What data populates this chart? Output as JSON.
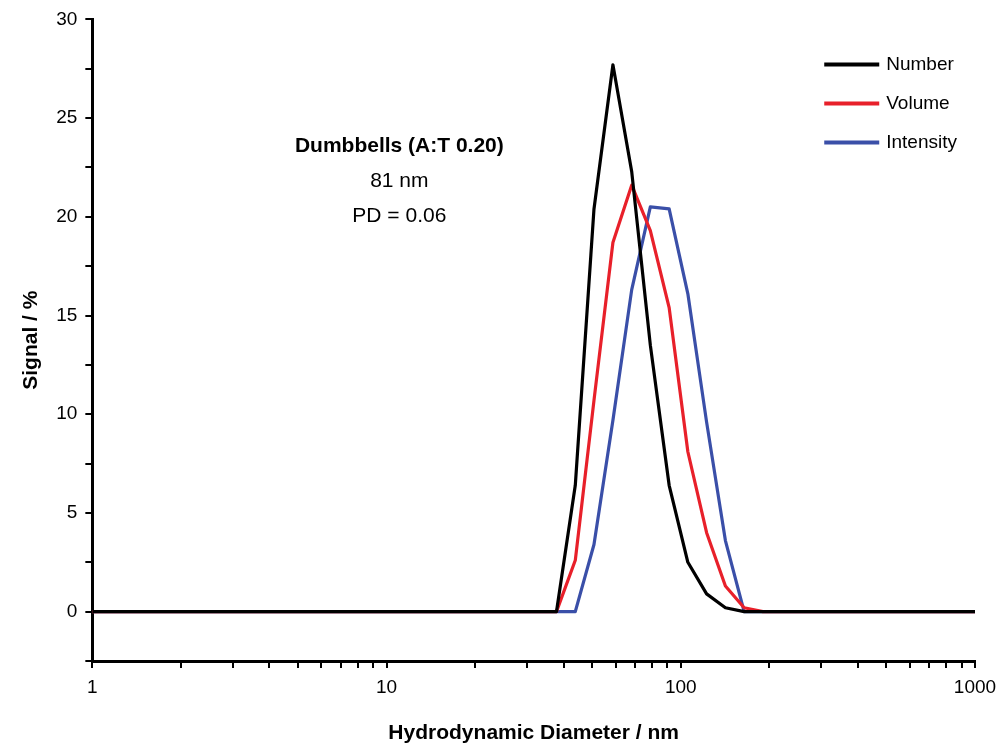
{
  "chart_data": {
    "type": "line",
    "xlabel": "Hydrodynamic Diameter / nm",
    "ylabel": "Signal / %",
    "log": "x",
    "xlim": [
      1,
      1000
    ],
    "ylim": [
      -2.5,
      30
    ],
    "xticks": [
      1,
      {
        "value": 2,
        "label": null
      },
      {
        "value": 3,
        "label": null
      },
      {
        "value": 4,
        "label": null
      },
      {
        "value": 5,
        "label": null
      },
      {
        "value": 6,
        "label": null
      },
      {
        "value": 7,
        "label": null
      },
      {
        "value": 8,
        "label": null
      },
      {
        "value": 9,
        "label": null
      },
      10,
      {
        "value": 20,
        "label": null
      },
      {
        "value": 30,
        "label": null
      },
      {
        "value": 40,
        "label": null
      },
      {
        "value": 50,
        "label": null
      },
      {
        "value": 60,
        "label": null
      },
      {
        "value": 70,
        "label": null
      },
      {
        "value": 80,
        "label": null
      },
      {
        "value": 90,
        "label": null
      },
      100,
      {
        "value": 200,
        "label": null
      },
      {
        "value": 300,
        "label": null
      },
      {
        "value": 400,
        "label": null
      },
      {
        "value": 500,
        "label": null
      },
      {
        "value": 600,
        "label": null
      },
      {
        "value": 700,
        "label": null
      },
      {
        "value": 800,
        "label": null
      },
      {
        "value": 900,
        "label": null
      },
      1000
    ],
    "yticks": [
      {
        "value": -2.5,
        "label": null
      },
      0,
      {
        "value": 2.5,
        "label": null
      },
      5,
      {
        "value": 7.5,
        "label": null
      },
      10,
      {
        "value": 12.5,
        "label": null
      },
      15,
      {
        "value": 17.5,
        "label": null
      },
      20,
      {
        "value": 22.5,
        "label": null
      },
      25,
      {
        "value": 27.5,
        "label": null
      },
      30
    ],
    "grid": false,
    "legend": "top right",
    "marker": "none",
    "line_style": "solid",
    "annotations": [
      "Dumbbells (A:T 0.20)",
      "81 nm",
      "PD = 0.06"
    ],
    "series": [
      {
        "name": "Number",
        "color": "#000000",
        "x": [
          1,
          37.8,
          43.8,
          50.7,
          58.8,
          68.1,
          78.8,
          91.3,
          105.7,
          122.4,
          141.8,
          164.2,
          190.1,
          1000
        ],
        "values": [
          0,
          0,
          6.4,
          20.4,
          27.7,
          22.3,
          13.5,
          6.4,
          2.5,
          0.9,
          0.2,
          0,
          0,
          0
        ]
      },
      {
        "name": "Volume",
        "color": "#e8202a",
        "x": [
          1,
          37.8,
          43.8,
          50.7,
          58.8,
          68.1,
          78.8,
          91.3,
          105.7,
          122.4,
          141.8,
          164.2,
          190.1,
          1000
        ],
        "values": [
          0,
          0,
          2.6,
          10.7,
          18.7,
          21.6,
          19.3,
          15.4,
          8.1,
          4.0,
          1.3,
          0.2,
          0,
          0
        ]
      },
      {
        "name": "Intensity",
        "color": "#3a4fa8",
        "x": [
          1,
          37.8,
          43.8,
          50.7,
          58.8,
          68.1,
          78.8,
          91.3,
          105.7,
          122.4,
          141.8,
          164.2,
          190.1,
          1000
        ],
        "values": [
          0,
          0,
          0,
          3.4,
          9.7,
          16.3,
          20.5,
          20.4,
          16.1,
          9.6,
          3.6,
          0,
          0,
          0
        ]
      }
    ]
  }
}
